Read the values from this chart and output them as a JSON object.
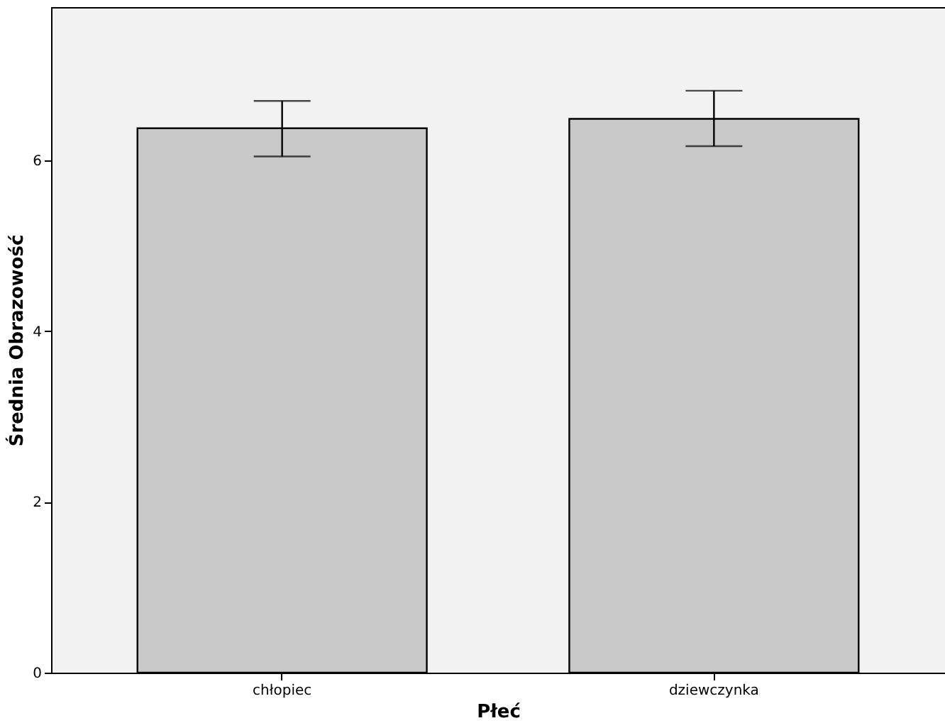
{
  "chart_data": {
    "type": "bar",
    "xlabel": "Płeć",
    "ylabel": "Średnia Obrazowość",
    "categories": [
      "chłopiec",
      "dziewczynka"
    ],
    "values": [
      6.38,
      6.49
    ],
    "errors": [
      [
        6.05,
        6.7
      ],
      [
        6.17,
        6.82
      ]
    ],
    "color": "#c8c8c8",
    "ylim": [
      0,
      7.8
    ],
    "yticks": [
      0,
      2,
      4,
      6
    ],
    "grid": false
  }
}
